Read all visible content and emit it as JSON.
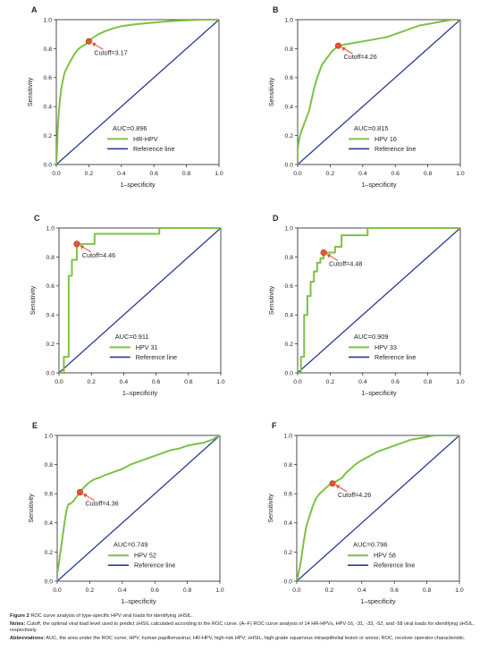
{
  "colors": {
    "roc": "#7dc242",
    "reference": "#2b3a93",
    "cutoff_marker": "#e8542f",
    "axis": "#231f20"
  },
  "axis_common": {
    "xlabel": "1–specificity",
    "ylabel": "Sensitivity",
    "ticks": [
      "0.0",
      "0.2",
      "0.4",
      "0.6",
      "0.8",
      "1.0"
    ],
    "xlim": [
      0,
      1
    ],
    "ylim": [
      0,
      1
    ],
    "reference_label": "Reference line"
  },
  "chart_data": [
    {
      "type": "line",
      "panel": "A",
      "title": "",
      "xlabel": "1–specificity",
      "ylabel": "Sensitivity",
      "xlim": [
        0,
        1
      ],
      "ylim": [
        0,
        1
      ],
      "grid": false,
      "legend_position": "bottom-right",
      "auc_label": "AUC=0.896",
      "cutoff_label": "Cutoff=3.17",
      "cutoff_point": [
        0.2,
        0.85
      ],
      "series": [
        {
          "name": "HR-HPV",
          "x": [
            0,
            0.005,
            0.01,
            0.02,
            0.03,
            0.04,
            0.05,
            0.07,
            0.09,
            0.11,
            0.13,
            0.15,
            0.18,
            0.2,
            0.23,
            0.26,
            0.3,
            0.35,
            0.4,
            0.5,
            0.6,
            0.7,
            0.8,
            0.9,
            1.0
          ],
          "y": [
            0,
            0.12,
            0.28,
            0.42,
            0.52,
            0.58,
            0.63,
            0.68,
            0.72,
            0.76,
            0.79,
            0.81,
            0.83,
            0.85,
            0.88,
            0.9,
            0.92,
            0.94,
            0.955,
            0.97,
            0.98,
            0.99,
            0.995,
            1.0,
            1.0
          ]
        },
        {
          "name": "Reference line",
          "x": [
            0,
            1
          ],
          "y": [
            0,
            1
          ]
        }
      ]
    },
    {
      "type": "line",
      "panel": "B",
      "title": "",
      "xlabel": "1–specificity",
      "ylabel": "Sensitivity",
      "xlim": [
        0,
        1
      ],
      "ylim": [
        0,
        1
      ],
      "grid": false,
      "legend_position": "bottom-right",
      "auc_label": "AUC=0.815",
      "cutoff_label": "Cutoff=4.26",
      "cutoff_point": [
        0.25,
        0.82
      ],
      "series": [
        {
          "name": "HPV 16",
          "x": [
            0,
            0,
            0.01,
            0.02,
            0.03,
            0.04,
            0.05,
            0.06,
            0.07,
            0.08,
            0.09,
            0.1,
            0.11,
            0.12,
            0.13,
            0.14,
            0.15,
            0.17,
            0.19,
            0.21,
            0.23,
            0.25,
            0.3,
            0.35,
            0.4,
            0.45,
            0.5,
            0.55,
            0.6,
            0.65,
            0.7,
            0.75,
            0.8,
            0.85,
            0.9,
            0.95,
            1.0
          ],
          "y": [
            0,
            0.1,
            0.18,
            0.22,
            0.25,
            0.28,
            0.31,
            0.34,
            0.37,
            0.42,
            0.47,
            0.52,
            0.56,
            0.6,
            0.63,
            0.66,
            0.69,
            0.72,
            0.75,
            0.78,
            0.8,
            0.82,
            0.83,
            0.84,
            0.85,
            0.86,
            0.87,
            0.88,
            0.9,
            0.92,
            0.94,
            0.96,
            0.97,
            0.98,
            0.99,
            1.0,
            1.0
          ]
        },
        {
          "name": "Reference line",
          "x": [
            0,
            1
          ],
          "y": [
            0,
            1
          ]
        }
      ]
    },
    {
      "type": "line",
      "panel": "C",
      "title": "",
      "xlabel": "1–specificity",
      "ylabel": "Sensitivity",
      "xlim": [
        0,
        1
      ],
      "ylim": [
        0,
        1
      ],
      "grid": false,
      "legend_position": "bottom-right",
      "auc_label": "AUC=0.911",
      "cutoff_label": "Cutoff=4.46",
      "cutoff_point": [
        0.11,
        0.89
      ],
      "series": [
        {
          "name": "HPV 31",
          "x": [
            0,
            0.03,
            0.03,
            0.06,
            0.06,
            0.08,
            0.08,
            0.11,
            0.11,
            0.22,
            0.22,
            0.62,
            0.62,
            1.0
          ],
          "y": [
            0,
            0,
            0.11,
            0.11,
            0.67,
            0.67,
            0.78,
            0.78,
            0.89,
            0.89,
            0.96,
            0.96,
            1.0,
            1.0
          ]
        },
        {
          "name": "Reference line",
          "x": [
            0,
            1
          ],
          "y": [
            0,
            1
          ]
        }
      ]
    },
    {
      "type": "line",
      "panel": "D",
      "title": "",
      "xlabel": "1–specificity",
      "ylabel": "Sensitivity",
      "xlim": [
        0,
        1
      ],
      "ylim": [
        0,
        1
      ],
      "grid": false,
      "legend_position": "bottom-right",
      "auc_label": "AUC=0.909",
      "cutoff_label": "Cutoff=4.48",
      "cutoff_point": [
        0.16,
        0.83
      ],
      "series": [
        {
          "name": "HPV 33",
          "x": [
            0,
            0.02,
            0.02,
            0.04,
            0.04,
            0.06,
            0.06,
            0.08,
            0.08,
            0.1,
            0.1,
            0.12,
            0.12,
            0.14,
            0.14,
            0.16,
            0.16,
            0.23,
            0.23,
            0.27,
            0.27,
            0.43,
            0.43,
            1.0
          ],
          "y": [
            0,
            0,
            0.11,
            0.11,
            0.4,
            0.4,
            0.53,
            0.53,
            0.63,
            0.63,
            0.7,
            0.7,
            0.76,
            0.76,
            0.79,
            0.79,
            0.83,
            0.83,
            0.87,
            0.87,
            0.95,
            0.95,
            1.0,
            1.0
          ]
        },
        {
          "name": "Reference line",
          "x": [
            0,
            1
          ],
          "y": [
            0,
            1
          ]
        }
      ]
    },
    {
      "type": "line",
      "panel": "E",
      "title": "",
      "xlabel": "1–specificity",
      "ylabel": "Sensitivity",
      "xlim": [
        0,
        1
      ],
      "ylim": [
        0,
        1
      ],
      "grid": false,
      "legend_position": "bottom-right",
      "auc_label": "AUC=0.749",
      "cutoff_label": "Cutoff=4.36",
      "cutoff_point": [
        0.14,
        0.61
      ],
      "series": [
        {
          "name": "HPV 52",
          "x": [
            0,
            0,
            0.01,
            0.02,
            0.03,
            0.04,
            0.05,
            0.06,
            0.07,
            0.08,
            0.1,
            0.12,
            0.14,
            0.17,
            0.2,
            0.23,
            0.26,
            0.3,
            0.35,
            0.4,
            0.45,
            0.5,
            0.55,
            0.6,
            0.65,
            0.7,
            0.75,
            0.8,
            0.85,
            0.9,
            0.95,
            1.0
          ],
          "y": [
            0,
            0.05,
            0.12,
            0.2,
            0.28,
            0.36,
            0.44,
            0.5,
            0.53,
            0.53,
            0.55,
            0.58,
            0.61,
            0.65,
            0.68,
            0.7,
            0.71,
            0.73,
            0.75,
            0.77,
            0.8,
            0.82,
            0.84,
            0.86,
            0.88,
            0.9,
            0.91,
            0.93,
            0.94,
            0.95,
            0.97,
            1.0
          ]
        },
        {
          "name": "Reference line",
          "x": [
            0,
            1
          ],
          "y": [
            0,
            1
          ]
        }
      ]
    },
    {
      "type": "line",
      "panel": "F",
      "title": "",
      "xlabel": "1–specificity",
      "ylabel": "Sensitivity",
      "xlim": [
        0,
        1
      ],
      "ylim": [
        0,
        1
      ],
      "grid": false,
      "legend_position": "bottom-right",
      "auc_label": "AUC=0.796",
      "cutoff_label": "Cutoff=4.26",
      "cutoff_point": [
        0.22,
        0.67
      ],
      "series": [
        {
          "name": "HPV 58",
          "x": [
            0,
            0.01,
            0.02,
            0.03,
            0.04,
            0.05,
            0.06,
            0.08,
            0.1,
            0.12,
            0.14,
            0.16,
            0.18,
            0.2,
            0.22,
            0.25,
            0.28,
            0.3,
            0.33,
            0.36,
            0.4,
            0.45,
            0.5,
            0.55,
            0.6,
            0.65,
            0.7,
            0.75,
            0.8,
            0.85,
            0.9,
            0.95,
            1.0
          ],
          "y": [
            0,
            0.05,
            0.1,
            0.17,
            0.25,
            0.32,
            0.38,
            0.45,
            0.52,
            0.57,
            0.6,
            0.62,
            0.64,
            0.66,
            0.67,
            0.69,
            0.71,
            0.74,
            0.77,
            0.8,
            0.83,
            0.86,
            0.89,
            0.91,
            0.93,
            0.95,
            0.97,
            0.98,
            0.99,
            1.0,
            1.0,
            1.0,
            1.0
          ]
        },
        {
          "name": "Reference line",
          "x": [
            0,
            1
          ],
          "y": [
            0,
            1
          ]
        }
      ]
    }
  ],
  "caption": {
    "figure_label": "Figure 2",
    "figure_text": "ROC curve analysis of type-specific HPV viral loads for identifying ≥HSIL.",
    "notes_label": "Notes:",
    "notes_text": "Cutoff, the optimal viral load level used to predict ≥HSIL calculated according to the ROC curve. (A–F) ROC curve analysis of 14 HR-HPVs, HPV-16, -31, -33, -52, and -58 viral loads for identifying ≥HSIL, respectively.",
    "abbrev_label": "Abbreviations:",
    "abbrev_text": "AUC, the area under the ROC curve; HPV, human papillomavirus; HR-HPV, high-risk HPV; ≥HSIL, high-grade squamous intraepithelial lesion or worse; ROC, receiver operator characteristic."
  }
}
